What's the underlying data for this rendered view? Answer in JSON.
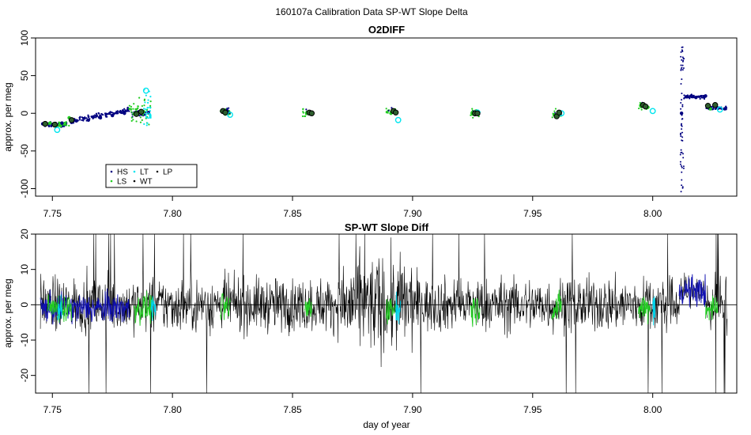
{
  "figure_title": "160107a   Calibration Data SP-WT Slope Delta",
  "chart_data": [
    {
      "type": "scatter",
      "title": "O2DIFF",
      "xlabel": "",
      "ylabel": "approx. per meg",
      "xlim": [
        7.743,
        8.035
      ],
      "ylim": [
        -110,
        100
      ],
      "x_ticks": [
        7.75,
        7.8,
        7.85,
        7.9,
        7.95,
        8.0
      ],
      "x_tick_labels": [
        "7.75",
        "7.80",
        "7.85",
        "7.90",
        "7.95",
        "8.00"
      ],
      "y_ticks": [
        -100,
        -50,
        0,
        50,
        100
      ],
      "y_tick_labels": [
        "-100",
        "-50",
        "0",
        "50",
        "100"
      ],
      "legend": {
        "placement": "bottom-left",
        "entries": [
          {
            "label": "HS",
            "color": "#000080",
            "marker": "dot"
          },
          {
            "label": "LS",
            "color": "#22cc22",
            "marker": "dot"
          },
          {
            "label": "LT",
            "color": "#00e5ee",
            "marker": "dot"
          },
          {
            "label": "WT",
            "color": "#000000",
            "marker": "dot"
          },
          {
            "label": "LP",
            "color": "#1a1a1a",
            "marker": "dot"
          }
        ]
      },
      "series": [
        {
          "name": "HS",
          "color": "#000080",
          "points": [
            [
              7.746,
              -14
            ],
            [
              7.75,
              -15
            ],
            [
              7.754,
              -13
            ],
            [
              7.758,
              -12
            ],
            [
              7.76,
              -10
            ],
            [
              7.765,
              -9
            ],
            [
              7.77,
              -6
            ],
            [
              7.775,
              -3
            ],
            [
              7.78,
              0
            ],
            [
              7.786,
              2
            ],
            [
              7.79,
              1
            ],
            [
              7.823,
              1
            ],
            [
              7.893,
              2
            ],
            [
              7.961,
              0
            ],
            [
              8.012,
              0
            ],
            [
              8.014,
              22
            ],
            [
              8.018,
              21
            ],
            [
              8.022,
              23
            ],
            [
              8.026,
              10
            ],
            [
              8.03,
              6
            ]
          ]
        },
        {
          "name": "LS",
          "color": "#22cc22",
          "points": [
            [
              7.749,
              -13
            ],
            [
              7.753,
              -16
            ],
            [
              7.757,
              -6
            ],
            [
              7.784,
              -1
            ],
            [
              7.788,
              2
            ],
            [
              7.822,
              -1
            ],
            [
              7.856,
              0
            ],
            [
              7.891,
              0
            ],
            [
              7.925,
              -1
            ],
            [
              7.959,
              -2
            ],
            [
              7.995,
              10
            ],
            [
              7.998,
              8
            ],
            [
              8.024,
              6
            ]
          ]
        },
        {
          "name": "LT",
          "color": "#00e5ee",
          "points": [
            [
              7.752,
              -22
            ],
            [
              7.789,
              30
            ],
            [
              7.79,
              -3
            ],
            [
              7.824,
              -2
            ],
            [
              7.894,
              -9
            ],
            [
              7.927,
              1
            ],
            [
              7.962,
              0
            ],
            [
              8.0,
              3
            ],
            [
              8.028,
              5
            ]
          ]
        },
        {
          "name": "WT",
          "color": "#000000",
          "points": [
            [
              7.751,
              -15
            ],
            [
              7.758,
              -9
            ],
            [
              7.785,
              -1
            ],
            [
              7.821,
              3
            ],
            [
              7.857,
              1
            ],
            [
              7.892,
              3
            ],
            [
              7.926,
              0
            ],
            [
              7.96,
              -4
            ],
            [
              7.996,
              11
            ],
            [
              8.023,
              10
            ]
          ]
        },
        {
          "name": "LP",
          "color": "#1a1a1a",
          "points": [
            [
              7.747,
              -14
            ],
            [
              7.787,
              2
            ],
            [
              7.822,
              1
            ],
            [
              7.858,
              0
            ],
            [
              7.893,
              1
            ],
            [
              7.927,
              0
            ],
            [
              7.961,
              1
            ],
            [
              7.997,
              9
            ],
            [
              8.026,
              11
            ]
          ]
        }
      ]
    },
    {
      "type": "line",
      "title": "SP-WT Slope Diff",
      "xlabel": "day of year",
      "ylabel": "approx. per meg",
      "xlim": [
        7.743,
        8.035
      ],
      "ylim": [
        -25,
        20
      ],
      "x_ticks": [
        7.75,
        7.8,
        7.85,
        7.9,
        7.95,
        8.0
      ],
      "x_tick_labels": [
        "7.75",
        "7.80",
        "7.85",
        "7.90",
        "7.95",
        "8.00"
      ],
      "y_ticks": [
        -20,
        -10,
        0,
        10,
        20
      ],
      "y_tick_labels": [
        "-20",
        "-10",
        "0",
        "10",
        "20"
      ],
      "reference_line_y": 0,
      "series": [
        {
          "name": "SP-WT",
          "color": "#000000",
          "x_range": [
            7.745,
            8.031
          ],
          "typical_amplitude": 6
        },
        {
          "name": "HS",
          "color": "#1010b0",
          "x_ranges": [
            [
              7.745,
              7.782
            ],
            [
              8.011,
              8.022
            ]
          ]
        },
        {
          "name": "LS",
          "color": "#22cc22",
          "x_ranges": [
            [
              7.748,
              7.758
            ],
            [
              7.784,
              7.792
            ],
            [
              7.82,
              7.824
            ],
            [
              7.855,
              7.858
            ],
            [
              7.889,
              7.893
            ],
            [
              7.924,
              7.928
            ],
            [
              7.958,
              7.962
            ],
            [
              7.994,
              7.999
            ],
            [
              8.022,
              8.027
            ]
          ]
        },
        {
          "name": "LT",
          "color": "#00d0e8",
          "x_ranges": [
            [
              7.752,
              7.754
            ],
            [
              7.791,
              7.793
            ],
            [
              7.893,
              7.895
            ],
            [
              8.0,
              8.001
            ]
          ]
        }
      ]
    }
  ]
}
